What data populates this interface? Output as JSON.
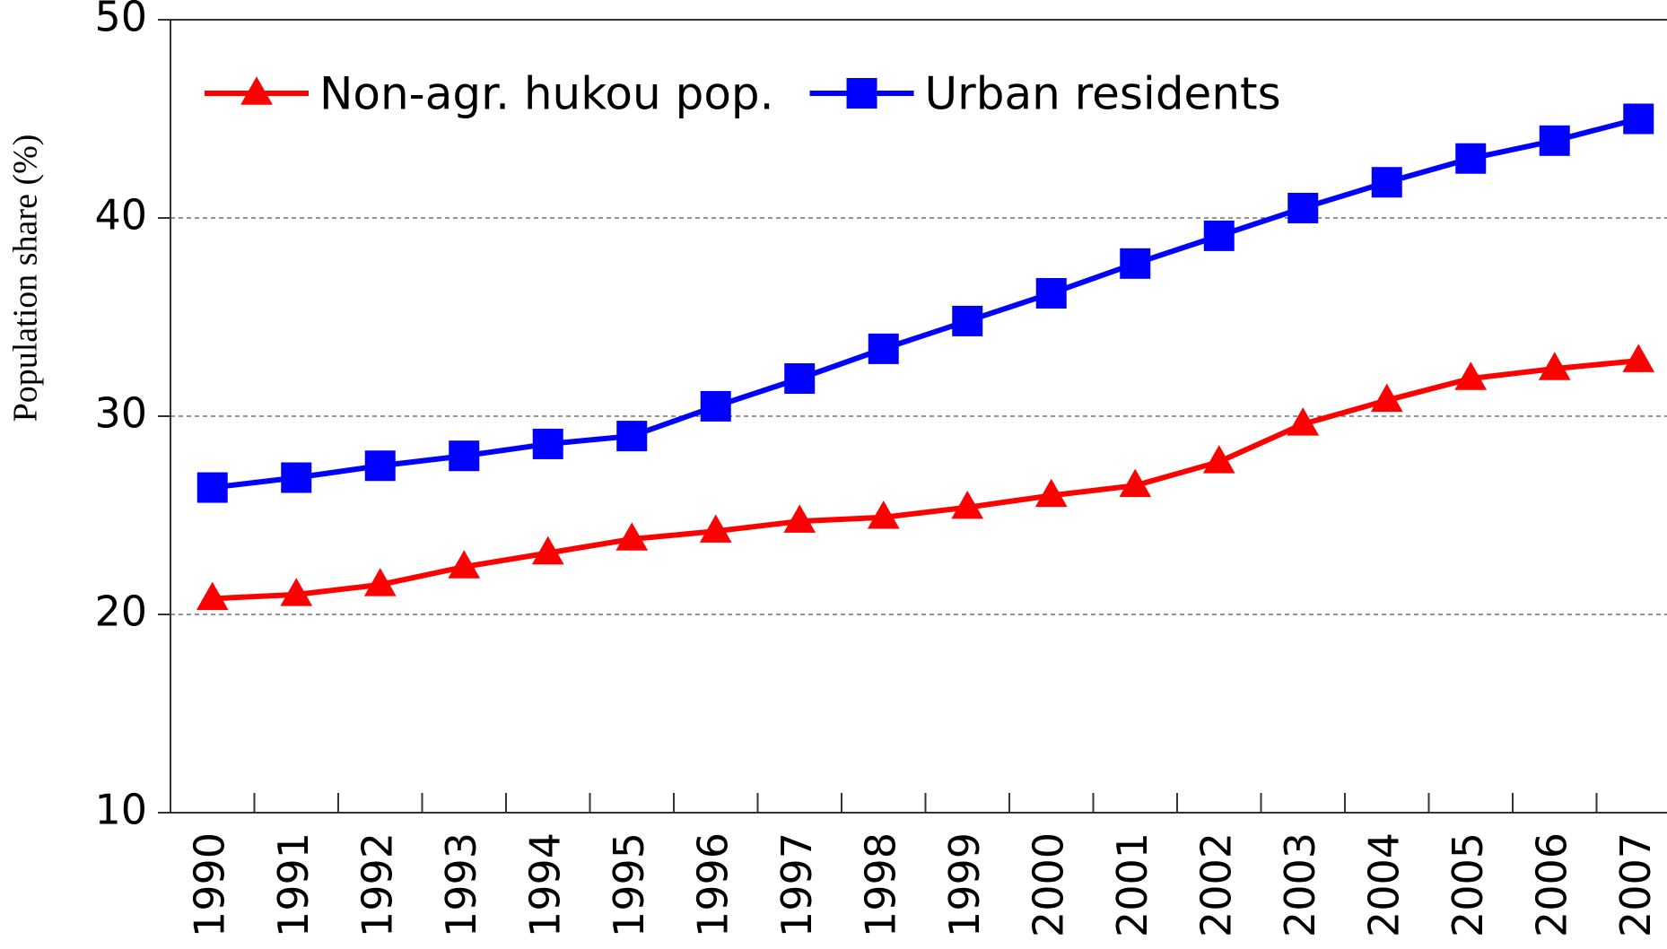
{
  "chart_data": {
    "type": "line",
    "y_label": "Population share (%)",
    "categories": [
      "1990",
      "1991",
      "1992",
      "1993",
      "1994",
      "1995",
      "1996",
      "1997",
      "1998",
      "1999",
      "2000",
      "2001",
      "2002",
      "2003",
      "2004",
      "2005",
      "2006",
      "2007"
    ],
    "series": [
      {
        "name": "Non-agr. hukou pop.",
        "color": "#ff0000",
        "marker": "triangle",
        "values": [
          20.8,
          21.0,
          21.5,
          22.4,
          23.1,
          23.8,
          24.2,
          24.7,
          24.9,
          25.4,
          26.0,
          26.5,
          27.7,
          29.6,
          30.8,
          31.9,
          32.4,
          32.8
        ]
      },
      {
        "name": "Urban residents",
        "color": "#0000ff",
        "marker": "square",
        "values": [
          26.4,
          26.9,
          27.5,
          28.0,
          28.6,
          29.0,
          30.5,
          31.9,
          33.4,
          34.8,
          36.2,
          37.7,
          39.1,
          40.5,
          41.8,
          43.0,
          43.9,
          45.0
        ]
      }
    ],
    "ylim": [
      10,
      50
    ],
    "yticks": [
      10,
      20,
      30,
      40,
      50
    ],
    "grid": true,
    "legend": "top-left"
  }
}
